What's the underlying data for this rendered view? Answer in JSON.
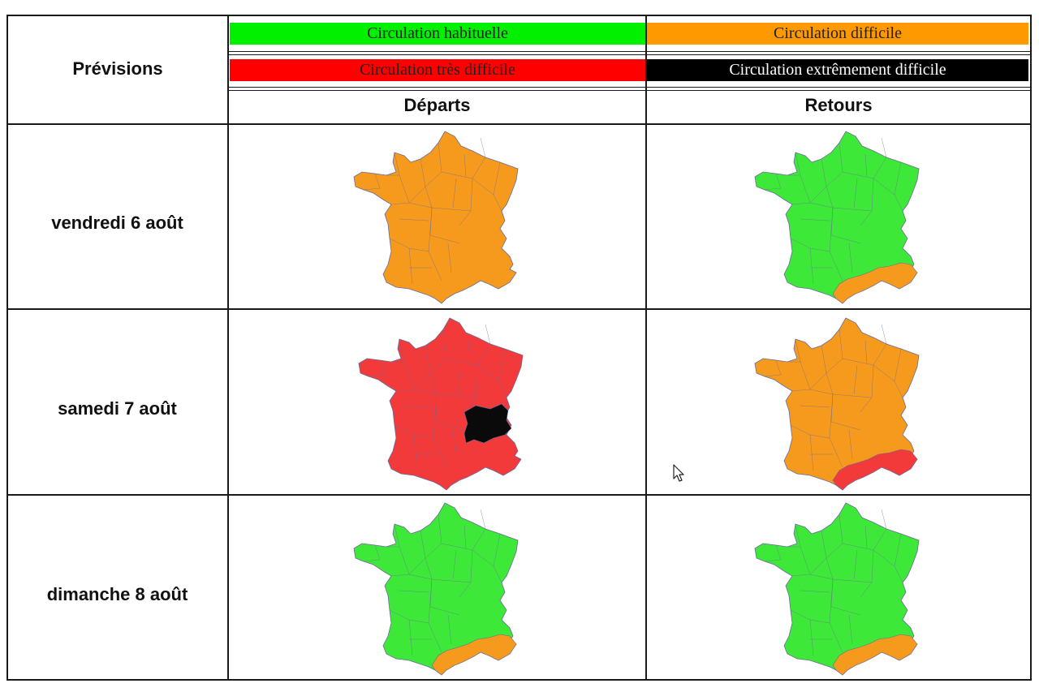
{
  "header": {
    "previsions": "Prévisions",
    "departs": "Départs",
    "retours": "Retours"
  },
  "legend": [
    {
      "label": "Circulation habituelle",
      "color": "#00f000",
      "text_color": "#222222"
    },
    {
      "label": "Circulation difficile",
      "color": "#ff9900",
      "text_color": "#222222"
    },
    {
      "label": "Circulation très difficile",
      "color": "#ff0000",
      "text_color": "#222222"
    },
    {
      "label": "Circulation extrêmement difficile",
      "color": "#000000",
      "text_color": "#ffffff"
    }
  ],
  "colors": {
    "green": "#3ee838",
    "orange": "#f59a1c",
    "red": "#f23a3a",
    "black": "#0a0a0a",
    "border": "#6a6a9a"
  },
  "rows": [
    {
      "label": "vendredi 6 août",
      "departs": {
        "base": "orange",
        "south": "orange",
        "east": "orange"
      },
      "retours": {
        "base": "green",
        "south": "orange",
        "east": "green"
      }
    },
    {
      "label": "samedi 7 août",
      "departs": {
        "base": "red",
        "south": "red",
        "east": "black"
      },
      "retours": {
        "base": "orange",
        "south": "red",
        "east": "orange"
      }
    },
    {
      "label": "dimanche 8 août",
      "departs": {
        "base": "green",
        "south": "orange",
        "east": "green"
      },
      "retours": {
        "base": "green",
        "south": "orange",
        "east": "green"
      }
    }
  ],
  "cursor": "mouse-pointer-icon"
}
